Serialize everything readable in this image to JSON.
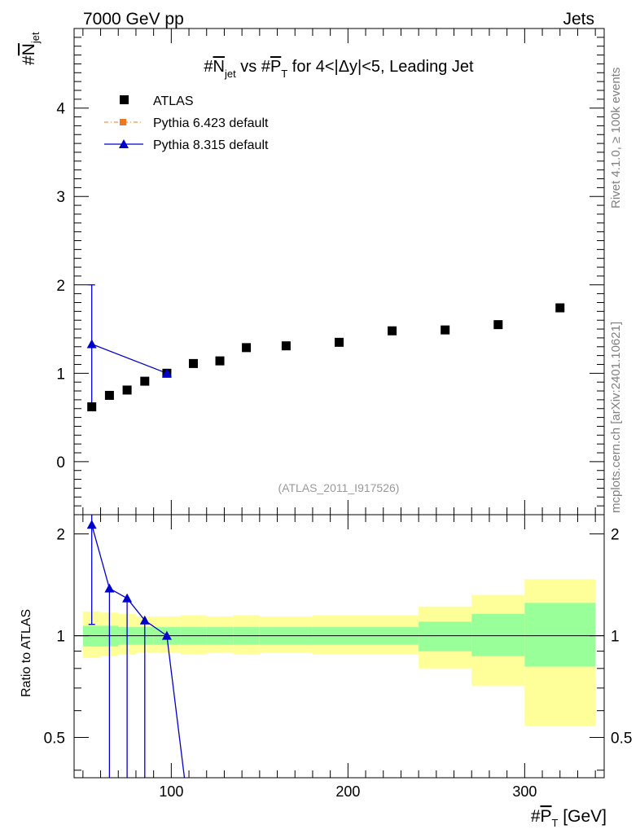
{
  "header": {
    "left": "7000 GeV pp",
    "right": "Jets"
  },
  "side": {
    "rivet": "Rivet 4.1.0, ≥ 100k events",
    "mcplots": "mcplots.cern.ch [arXiv:2401.10621]"
  },
  "title": {
    "pre": "#",
    "n": "N",
    "nsub": "jet",
    "mid": " vs #",
    "p": "P",
    "psub": "T",
    "post": " for 4<|Δy|<5, Leading Jet"
  },
  "analysis_id": "(ATLAS_2011_I917526)",
  "legend": {
    "atlas": "ATLAS",
    "py6": "Pythia 6.423 default",
    "py8": "Pythia 8.315 default"
  },
  "axes": {
    "ylabel_top_pre": "#",
    "ylabel_top_n": "N",
    "ylabel_top_sub": "jet",
    "ylabel_bottom": "Ratio to ATLAS",
    "xlabel_pre": "#",
    "xlabel_p": "P",
    "xlabel_sub": "T",
    "xlabel_unit": " [GeV]"
  },
  "colors": {
    "data": "#000000",
    "py6": "#ee7722",
    "py8": "#0000cc",
    "band_outer": "#ffff99",
    "band_inner": "#99ff99"
  },
  "chart_data": {
    "type": "scatter",
    "x_range": [
      45,
      345
    ],
    "x_ticks": [
      100,
      200,
      300
    ],
    "main": {
      "y_range": [
        -0.6,
        4.9
      ],
      "y_ticks": [
        0,
        1,
        2,
        3,
        4
      ],
      "data": [
        {
          "x": 55,
          "y": 0.62
        },
        {
          "x": 65,
          "y": 0.75
        },
        {
          "x": 75,
          "y": 0.81
        },
        {
          "x": 85,
          "y": 0.91
        },
        {
          "x": 97.5,
          "y": 1.0
        },
        {
          "x": 112.5,
          "y": 1.11
        },
        {
          "x": 127.5,
          "y": 1.14
        },
        {
          "x": 142.5,
          "y": 1.29
        },
        {
          "x": 165,
          "y": 1.31
        },
        {
          "x": 195,
          "y": 1.35
        },
        {
          "x": 225,
          "y": 1.48
        },
        {
          "x": 255,
          "y": 1.49
        },
        {
          "x": 285,
          "y": 1.55
        },
        {
          "x": 320,
          "y": 1.74
        }
      ],
      "pythia8": [
        {
          "x": 55,
          "y": 1.33,
          "ylo": 0.65,
          "yhi": 2.0
        },
        {
          "x": 97.5,
          "y": 1.0,
          "ylo": 1.0,
          "yhi": 1.0
        }
      ]
    },
    "ratio": {
      "y_range": [
        0.38,
        2.28
      ],
      "y_ticks": [
        0.5,
        1,
        2
      ],
      "reference": 1.0,
      "bands": [
        {
          "x0": 50,
          "x1": 60,
          "lo_outer": 0.86,
          "hi_outer": 1.18,
          "lo_inner": 0.93,
          "hi_inner": 1.07
        },
        {
          "x0": 60,
          "x1": 70,
          "lo_outer": 0.87,
          "hi_outer": 1.17,
          "lo_inner": 0.93,
          "hi_inner": 1.07
        },
        {
          "x0": 70,
          "x1": 80,
          "lo_outer": 0.88,
          "hi_outer": 1.16,
          "lo_inner": 0.94,
          "hi_inner": 1.06
        },
        {
          "x0": 80,
          "x1": 90,
          "lo_outer": 0.89,
          "hi_outer": 1.14,
          "lo_inner": 0.94,
          "hi_inner": 1.06
        },
        {
          "x0": 90,
          "x1": 105,
          "lo_outer": 0.89,
          "hi_outer": 1.14,
          "lo_inner": 0.94,
          "hi_inner": 1.06
        },
        {
          "x0": 105,
          "x1": 120,
          "lo_outer": 0.88,
          "hi_outer": 1.15,
          "lo_inner": 0.94,
          "hi_inner": 1.06
        },
        {
          "x0": 120,
          "x1": 135,
          "lo_outer": 0.89,
          "hi_outer": 1.14,
          "lo_inner": 0.94,
          "hi_inner": 1.06
        },
        {
          "x0": 135,
          "x1": 150,
          "lo_outer": 0.88,
          "hi_outer": 1.15,
          "lo_inner": 0.94,
          "hi_inner": 1.06
        },
        {
          "x0": 150,
          "x1": 180,
          "lo_outer": 0.89,
          "hi_outer": 1.14,
          "lo_inner": 0.94,
          "hi_inner": 1.06
        },
        {
          "x0": 180,
          "x1": 210,
          "lo_outer": 0.88,
          "hi_outer": 1.15,
          "lo_inner": 0.94,
          "hi_inner": 1.06
        },
        {
          "x0": 210,
          "x1": 240,
          "lo_outer": 0.88,
          "hi_outer": 1.15,
          "lo_inner": 0.94,
          "hi_inner": 1.06
        },
        {
          "x0": 240,
          "x1": 270,
          "lo_outer": 0.8,
          "hi_outer": 1.22,
          "lo_inner": 0.9,
          "hi_inner": 1.1
        },
        {
          "x0": 270,
          "x1": 300,
          "lo_outer": 0.71,
          "hi_outer": 1.32,
          "lo_inner": 0.87,
          "hi_inner": 1.16
        },
        {
          "x0": 300,
          "x1": 340,
          "lo_outer": 0.54,
          "hi_outer": 1.47,
          "lo_inner": 0.81,
          "hi_inner": 1.25
        }
      ],
      "pythia8": [
        {
          "x": 55,
          "y": 2.13,
          "ylo": 1.08,
          "yhi": 2.28
        },
        {
          "x": 65,
          "y": 1.38,
          "ylo": 0.38,
          "yhi": 1.38
        },
        {
          "x": 75,
          "y": 1.29,
          "ylo": 0.38,
          "yhi": 1.29
        },
        {
          "x": 85,
          "y": 1.11,
          "ylo": 0.38,
          "yhi": 1.11
        },
        {
          "x": 97.5,
          "y": 1.0,
          "ylo": 1.0,
          "yhi": 1.0
        },
        {
          "x": 108,
          "y": 0.36,
          "ylo": 0.36,
          "yhi": 0.36
        }
      ]
    }
  }
}
